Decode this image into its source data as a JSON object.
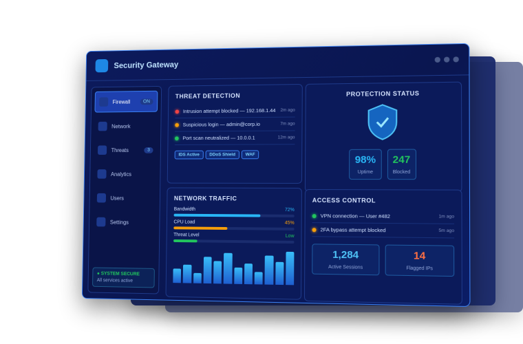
{
  "header": {
    "title": "Security Gateway"
  },
  "sidebar": {
    "items": [
      {
        "label": "Firewall",
        "badge": "ON"
      },
      {
        "label": "Network"
      },
      {
        "label": "Threats",
        "badge": "3"
      },
      {
        "label": "Analytics"
      },
      {
        "label": "Users"
      },
      {
        "label": "Settings"
      }
    ],
    "status": {
      "title": "SYSTEM SECURE",
      "text": "All services active"
    }
  },
  "threats": {
    "title": "THREAT DETECTION",
    "items": [
      {
        "text": "Intrusion attempt blocked — 192.168.1.44",
        "time": "2m ago",
        "color": "#ef4444"
      },
      {
        "text": "Suspicious login — admin@corp.io",
        "time": "7m ago",
        "color": "#f59e0b"
      },
      {
        "text": "Port scan neutralized — 10.0.0.1",
        "time": "12m ago",
        "color": "#22c55e"
      }
    ],
    "tags": [
      "IDS Active",
      "DDoS Shield",
      "WAF"
    ]
  },
  "protection": {
    "title": "PROTECTION STATUS",
    "stats": [
      {
        "value": "98%",
        "label": "Uptime",
        "color": "#29b6f6"
      },
      {
        "value": "247",
        "label": "Blocked",
        "color": "#22c55e"
      }
    ]
  },
  "traffic": {
    "title": "NETWORK TRAFFIC",
    "meters": [
      {
        "name": "Bandwidth",
        "value": 72,
        "label": "72%",
        "color": "#29b6f6"
      },
      {
        "name": "CPU Load",
        "value": 45,
        "label": "45%",
        "color": "#f59e0b"
      },
      {
        "name": "Threat Level",
        "value": 20,
        "label": "Low",
        "color": "#22c55e"
      }
    ],
    "bars": [
      7,
      9,
      5,
      13,
      11,
      15,
      8,
      10,
      6,
      14,
      11,
      16
    ]
  },
  "access": {
    "title": "ACCESS CONTROL",
    "items": [
      {
        "text": "VPN connection — User #482",
        "time": "1m ago",
        "color": "#22c55e"
      },
      {
        "text": "2FA bypass attempt blocked",
        "time": "5m ago",
        "color": "#f59e0b"
      }
    ],
    "stats": [
      {
        "value": "1,284",
        "label": "Active Sessions",
        "color": "#4fc3f7"
      },
      {
        "value": "14",
        "label": "Flagged IPs",
        "color": "#ff7043"
      }
    ]
  }
}
